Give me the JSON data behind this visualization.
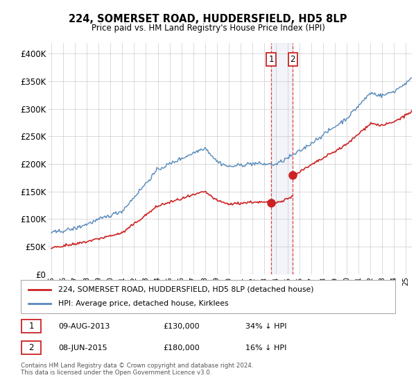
{
  "title": "224, SOMERSET ROAD, HUDDERSFIELD, HD5 8LP",
  "subtitle": "Price paid vs. HM Land Registry's House Price Index (HPI)",
  "ylim": [
    0,
    420000
  ],
  "yticks": [
    0,
    50000,
    100000,
    150000,
    200000,
    250000,
    300000,
    350000,
    400000
  ],
  "ytick_labels": [
    "£0",
    "£50K",
    "£100K",
    "£150K",
    "£200K",
    "£250K",
    "£300K",
    "£350K",
    "£400K"
  ],
  "hpi_color": "#5588bb",
  "price_color": "#cc2222",
  "sale1_date_num": 2013.6,
  "sale1_price": 130000,
  "sale2_date_num": 2015.43,
  "sale2_price": 180000,
  "sale1_label": "1",
  "sale2_label": "2",
  "legend_price_label": "224, SOMERSET ROAD, HUDDERSFIELD, HD5 8LP (detached house)",
  "legend_hpi_label": "HPI: Average price, detached house, Kirklees",
  "note1_label": "1",
  "note1_date": "09-AUG-2013",
  "note1_price": "£130,000",
  "note1_pct": "34% ↓ HPI",
  "note2_label": "2",
  "note2_date": "08-JUN-2015",
  "note2_price": "£180,000",
  "note2_pct": "16% ↓ HPI",
  "footer": "Contains HM Land Registry data © Crown copyright and database right 2024.\nThis data is licensed under the Open Government Licence v3.0.",
  "background_color": "#ffffff",
  "grid_color": "#cccccc",
  "xmin": 1994.7,
  "xmax": 2025.5
}
